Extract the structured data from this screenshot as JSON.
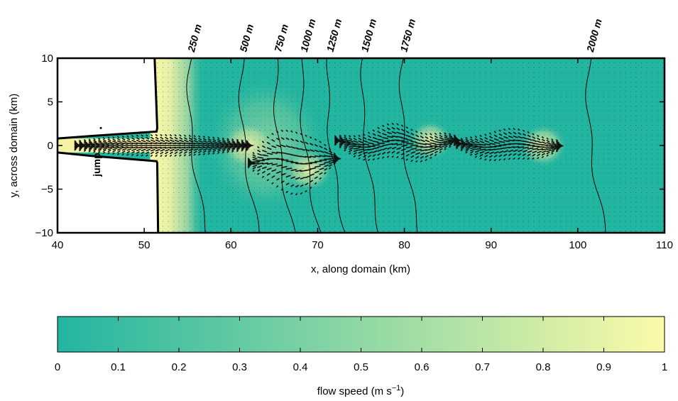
{
  "chart_data": [
    {
      "type": "heatmap",
      "title": "",
      "xlabel": "x, along domain (km)",
      "ylabel": "y, across domain (km)",
      "xlim": [
        40,
        110
      ],
      "ylim": [
        -10,
        10
      ],
      "xticks": [
        40,
        50,
        60,
        70,
        80,
        90,
        100,
        110
      ],
      "yticks": [
        -10,
        -5,
        0,
        5,
        10
      ],
      "colormap": {
        "low": "#22b5a0",
        "high": "#fcfaa8"
      },
      "depth_contours": [
        {
          "label": "250 m",
          "x": 55.5
        },
        {
          "label": "500 m",
          "x": 61.5
        },
        {
          "label": "750 m",
          "x": 65.5
        },
        {
          "label": "1000 m",
          "x": 68.5
        },
        {
          "label": "1250 m",
          "x": 71.5
        },
        {
          "label": "1500 m",
          "x": 75.5
        },
        {
          "label": "1750 m",
          "x": 80.0
        },
        {
          "label": "2000 m",
          "x": 101.5
        }
      ],
      "channel": {
        "x_start": 40,
        "x_end": 51.5,
        "y_half_width": 0.8
      },
      "annotations": [
        {
          "text": "jump",
          "x": 44.5,
          "y": -2.2
        }
      ],
      "plume_jets": [
        {
          "x": 62,
          "y": 0,
          "radius_km": 3.2
        },
        {
          "x": 69,
          "y": -2.8,
          "radius_km": 2.8
        },
        {
          "x": 83,
          "y": 0.6,
          "radius_km": 2.6
        },
        {
          "x": 96,
          "y": 0,
          "radius_km": 2.8
        }
      ]
    },
    {
      "type": "colorbar",
      "xlabel": "flow speed (m s",
      "xlabel_sup": "−1",
      "xlabel_suffix": ")",
      "range": [
        0,
        1
      ],
      "ticks": [
        "0",
        "0.1",
        "0.2",
        "0.3",
        "0.4",
        "0.5",
        "0.6",
        "0.7",
        "0.8",
        "0.9",
        "1"
      ]
    }
  ]
}
